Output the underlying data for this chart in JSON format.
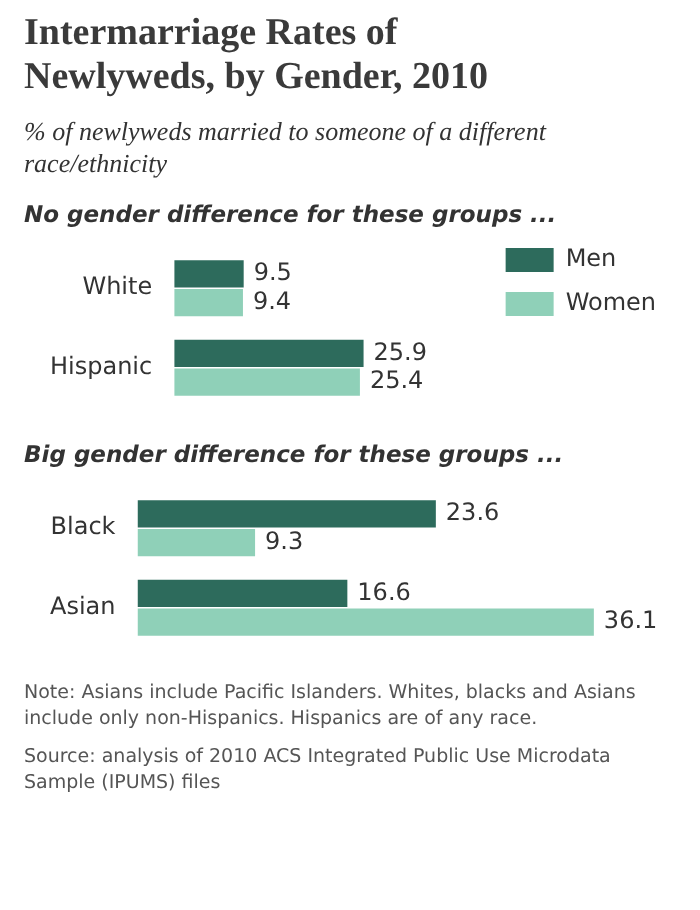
{
  "chart_data": [
    {
      "type": "bar",
      "orientation": "horizontal",
      "title": "Intermarriage Rates of Newlyweds, by Gender, 2010",
      "subtitle": "% of newlyweds married to someone of a different race/ethnicity",
      "annotations": [
        "No gender difference for these groups ..."
      ],
      "categories": [
        "White",
        "Hispanic"
      ],
      "series": [
        {
          "name": "Men",
          "color": "#2d6b5c",
          "values": [
            9.5,
            25.9
          ]
        },
        {
          "name": "Women",
          "color": "#8fd0b8",
          "values": [
            9.4,
            25.4
          ]
        }
      ],
      "data_labels": true,
      "legend": "top right",
      "tick_labels": "y"
    },
    {
      "type": "bar",
      "orientation": "horizontal",
      "annotations": [
        "Big gender difference for these groups ...",
        "Note: Asians include Pacific Islanders. Whites, blacks and Asians include only non-Hispanics. Hispanics are of any race.",
        "Source: analysis of 2010 ACS Integrated Public Use Microdata Sample (IPUMS) files"
      ],
      "categories": [
        "Black",
        "Asian"
      ],
      "series": [
        {
          "color": "#2d6b5c",
          "values": [
            23.6,
            16.6
          ]
        },
        {
          "color": "#8fd0b8",
          "values": [
            9.3,
            36.1
          ]
        }
      ],
      "data_labels": true,
      "legend": false,
      "tick_labels": "y"
    }
  ]
}
